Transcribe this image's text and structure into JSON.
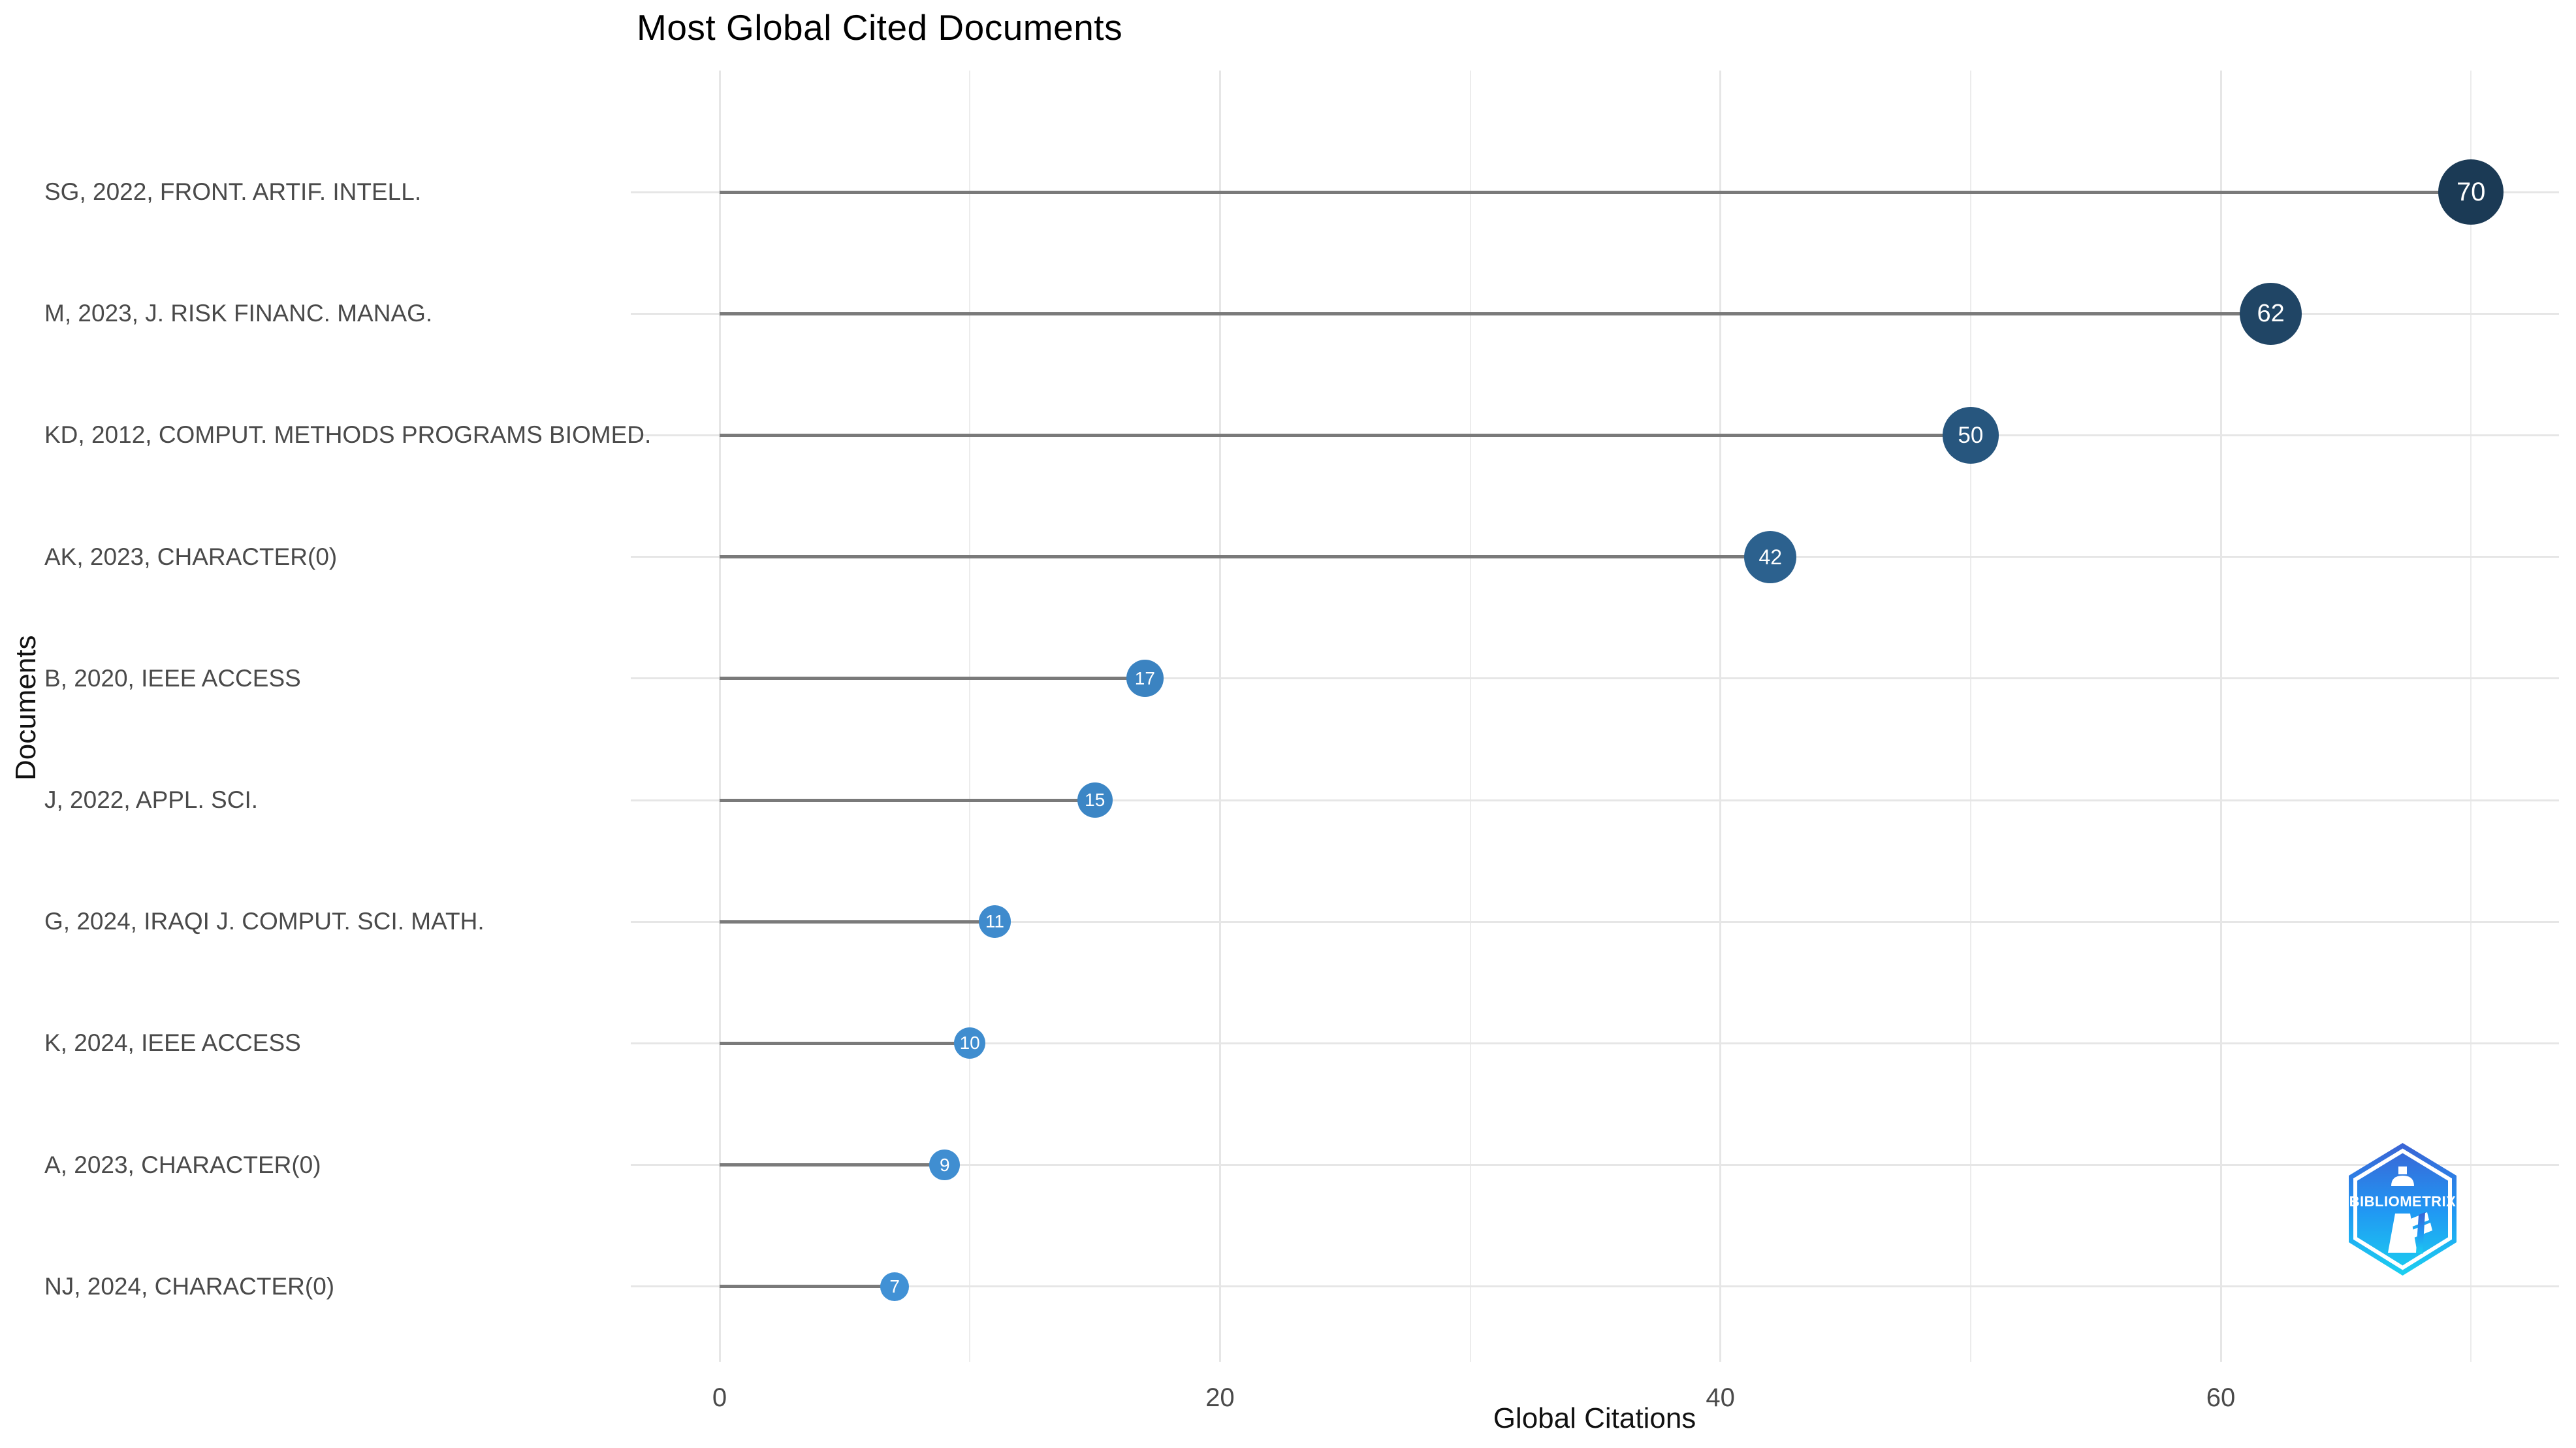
{
  "title": "Most Global Cited Documents",
  "y_axis_title": "Documents",
  "x_axis_title": "Global Citations",
  "x_tick_labels": [
    "0",
    "20",
    "40",
    "60"
  ],
  "chart_data": {
    "type": "scatter",
    "subtype": "horizontal-lollipop",
    "title": "Most Global Cited Documents",
    "xlabel": "Global Citations",
    "ylabel": "Documents",
    "categories": [
      "SG, 2022, FRONT. ARTIF. INTELL.",
      "M, 2023, J. RISK FINANC. MANAG.",
      "KD, 2012, COMPUT. METHODS PROGRAMS BIOMED.",
      "AK, 2023, CHARACTER(0)",
      "B, 2020, IEEE ACCESS",
      "J, 2022, APPL. SCI.",
      "G, 2024, IRAQI J. COMPUT. SCI. MATH.",
      "K, 2024, IEEE ACCESS",
      "A, 2023, CHARACTER(0)",
      "NJ, 2024, CHARACTER(0)"
    ],
    "values": [
      70,
      62,
      50,
      42,
      17,
      15,
      11,
      10,
      9,
      7
    ],
    "point_labels": [
      "70",
      "62",
      "50",
      "42",
      "17",
      "15",
      "11",
      "10",
      "9",
      "7"
    ],
    "xlim": [
      -3.5,
      73.5
    ],
    "x_major_ticks": [
      0,
      20,
      40,
      60
    ],
    "x_minor_ticks": [
      10,
      30,
      50,
      70
    ],
    "grid": true,
    "legend_position": "none"
  },
  "colors": {
    "background": "#ffffff",
    "dot_low": "#4191d5",
    "dot_high": "#1b3a55",
    "stem": "#7a7a7a",
    "grid_major": "#e6e6e6",
    "grid_minor": "#ececec",
    "axis_text": "#4a4a4a",
    "title_text": "#000000",
    "dot_label_text": "#ffffff"
  },
  "logo": {
    "label": "BIBLIOMETRIX",
    "gradient_top": "#3b63d4",
    "gradient_mid": "#2196f3",
    "gradient_bottom": "#1bd0f0"
  }
}
